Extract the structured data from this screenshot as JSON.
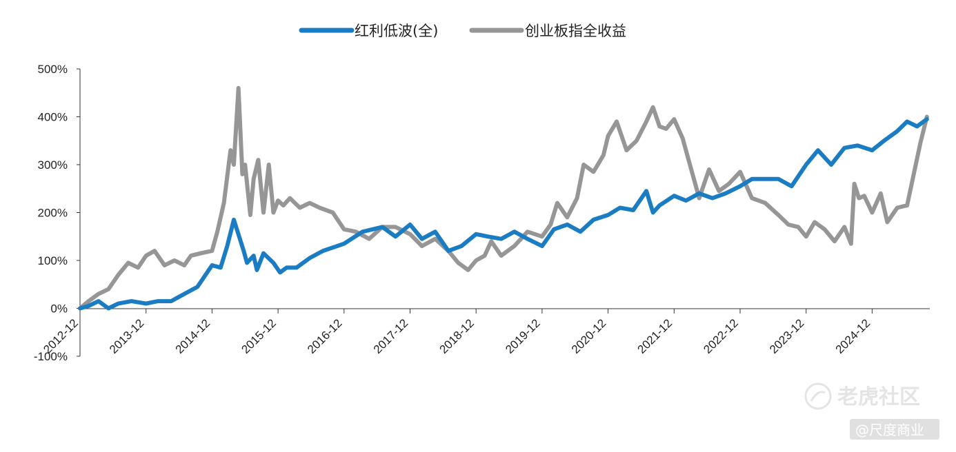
{
  "chart_data": {
    "type": "line",
    "title": "",
    "xlabel": "",
    "ylabel": "",
    "ylim": [
      -100,
      500
    ],
    "yticks": [
      "500%",
      "400%",
      "300%",
      "200%",
      "100%",
      "0%",
      "-100%"
    ],
    "ytick_values": [
      500,
      400,
      300,
      200,
      100,
      0,
      -100
    ],
    "xticks": [
      "2012-12",
      "2013-12",
      "2014-12",
      "2015-12",
      "2016-12",
      "2017-12",
      "2018-12",
      "2019-12",
      "2020-12",
      "2021-12",
      "2022-12",
      "2023-12",
      "2024-12"
    ],
    "grid": false,
    "legend_position": "top-center",
    "x_unit_note": "",
    "series": [
      {
        "name": "红利低波(全)",
        "color": "#1a7dc4",
        "x": [
          2012.92,
          2013.05,
          2013.2,
          2013.35,
          2013.5,
          2013.7,
          2013.92,
          2014.1,
          2014.3,
          2014.5,
          2014.7,
          2014.92,
          2015.05,
          2015.15,
          2015.25,
          2015.4,
          2015.45,
          2015.55,
          2015.6,
          2015.7,
          2015.85,
          2015.95,
          2016.05,
          2016.2,
          2016.4,
          2016.6,
          2016.92,
          2017.2,
          2017.5,
          2017.7,
          2017.92,
          2018.1,
          2018.3,
          2018.5,
          2018.7,
          2018.92,
          2019.1,
          2019.3,
          2019.5,
          2019.7,
          2019.92,
          2020.1,
          2020.3,
          2020.5,
          2020.7,
          2020.92,
          2021.1,
          2021.3,
          2021.5,
          2021.6,
          2021.7,
          2021.92,
          2022.1,
          2022.3,
          2022.5,
          2022.7,
          2022.92,
          2023.1,
          2023.3,
          2023.5,
          2023.7,
          2023.92,
          2024.1,
          2024.3,
          2024.5,
          2024.7,
          2024.92,
          2025.1,
          2025.3,
          2025.45,
          2025.6,
          2025.75
        ],
        "y": [
          0,
          5,
          15,
          0,
          10,
          15,
          10,
          15,
          15,
          30,
          45,
          90,
          85,
          130,
          185,
          120,
          95,
          110,
          80,
          115,
          95,
          75,
          85,
          85,
          105,
          120,
          135,
          160,
          170,
          150,
          175,
          145,
          160,
          120,
          130,
          155,
          150,
          145,
          160,
          145,
          130,
          165,
          175,
          160,
          185,
          195,
          210,
          205,
          245,
          200,
          215,
          235,
          225,
          240,
          230,
          240,
          255,
          270,
          270,
          270,
          255,
          300,
          330,
          300,
          335,
          340,
          330,
          350,
          370,
          390,
          380,
          395
        ]
      },
      {
        "name": "创业板指全收益",
        "color": "#969696",
        "x": [
          2012.92,
          2013.05,
          2013.2,
          2013.35,
          2013.5,
          2013.65,
          2013.8,
          2013.92,
          2014.05,
          2014.2,
          2014.35,
          2014.5,
          2014.6,
          2014.75,
          2014.92,
          2015.0,
          2015.1,
          2015.2,
          2015.25,
          2015.32,
          2015.38,
          2015.42,
          2015.5,
          2015.55,
          2015.62,
          2015.7,
          2015.78,
          2015.85,
          2015.92,
          2016.0,
          2016.1,
          2016.25,
          2016.4,
          2016.55,
          2016.75,
          2016.92,
          2017.1,
          2017.3,
          2017.5,
          2017.7,
          2017.92,
          2018.1,
          2018.3,
          2018.5,
          2018.65,
          2018.8,
          2018.92,
          2019.05,
          2019.15,
          2019.3,
          2019.5,
          2019.7,
          2019.92,
          2020.05,
          2020.15,
          2020.3,
          2020.45,
          2020.55,
          2020.7,
          2020.85,
          2020.92,
          2021.05,
          2021.2,
          2021.35,
          2021.5,
          2021.6,
          2021.7,
          2021.8,
          2021.92,
          2022.05,
          2022.2,
          2022.3,
          2022.45,
          2022.6,
          2022.75,
          2022.92,
          2023.1,
          2023.3,
          2023.5,
          2023.65,
          2023.8,
          2023.92,
          2024.05,
          2024.2,
          2024.35,
          2024.5,
          2024.6,
          2024.65,
          2024.72,
          2024.8,
          2024.92,
          2025.05,
          2025.15,
          2025.3,
          2025.45,
          2025.55,
          2025.65,
          2025.75
        ],
        "y": [
          0,
          15,
          30,
          40,
          70,
          95,
          85,
          110,
          120,
          90,
          100,
          90,
          110,
          115,
          120,
          160,
          220,
          330,
          300,
          460,
          280,
          300,
          195,
          270,
          310,
          200,
          300,
          200,
          225,
          215,
          230,
          210,
          220,
          210,
          200,
          165,
          160,
          145,
          170,
          170,
          155,
          130,
          145,
          120,
          95,
          80,
          100,
          110,
          140,
          110,
          130,
          160,
          150,
          175,
          220,
          190,
          230,
          300,
          285,
          320,
          360,
          390,
          330,
          350,
          390,
          420,
          380,
          375,
          395,
          355,
          280,
          230,
          290,
          245,
          260,
          285,
          230,
          220,
          195,
          175,
          170,
          150,
          180,
          165,
          140,
          170,
          135,
          260,
          230,
          235,
          200,
          240,
          180,
          210,
          215,
          280,
          345,
          400
        ]
      }
    ]
  },
  "legend": {
    "items": [
      {
        "label": "红利低波(全)",
        "color": "#1a7dc4"
      },
      {
        "label": "创业板指全收益",
        "color": "#969696"
      }
    ]
  },
  "watermark": {
    "main": "老虎社区",
    "sub": "@尺度商业"
  }
}
